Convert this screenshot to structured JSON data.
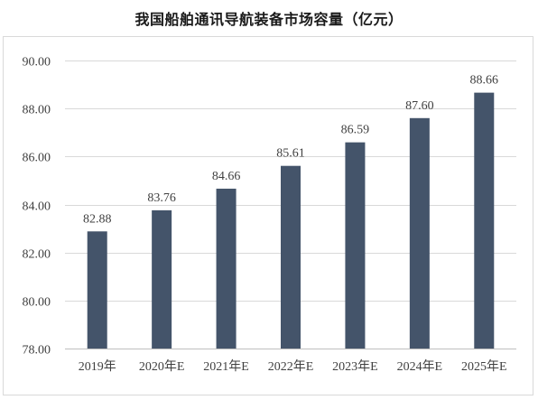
{
  "chart_data": {
    "type": "bar",
    "title": "我国船舶通讯导航装备市场容量（亿元）",
    "categories": [
      "2019年",
      "2020年E",
      "2021年E",
      "2022年E",
      "2023年E",
      "2024年E",
      "2025年E"
    ],
    "values": [
      82.88,
      83.76,
      84.66,
      85.61,
      86.59,
      87.6,
      88.66
    ],
    "data_labels": [
      "82.88",
      "83.76",
      "84.66",
      "85.61",
      "86.59",
      "87.60",
      "88.66"
    ],
    "ylim": [
      78,
      90
    ],
    "yticks": [
      78,
      80,
      82,
      84,
      86,
      88,
      90
    ],
    "ytick_labels": [
      "78.00",
      "80.00",
      "82.00",
      "84.00",
      "86.00",
      "88.00",
      "90.00"
    ],
    "grid": true,
    "legend": "none",
    "bar_color": "#44546a"
  }
}
